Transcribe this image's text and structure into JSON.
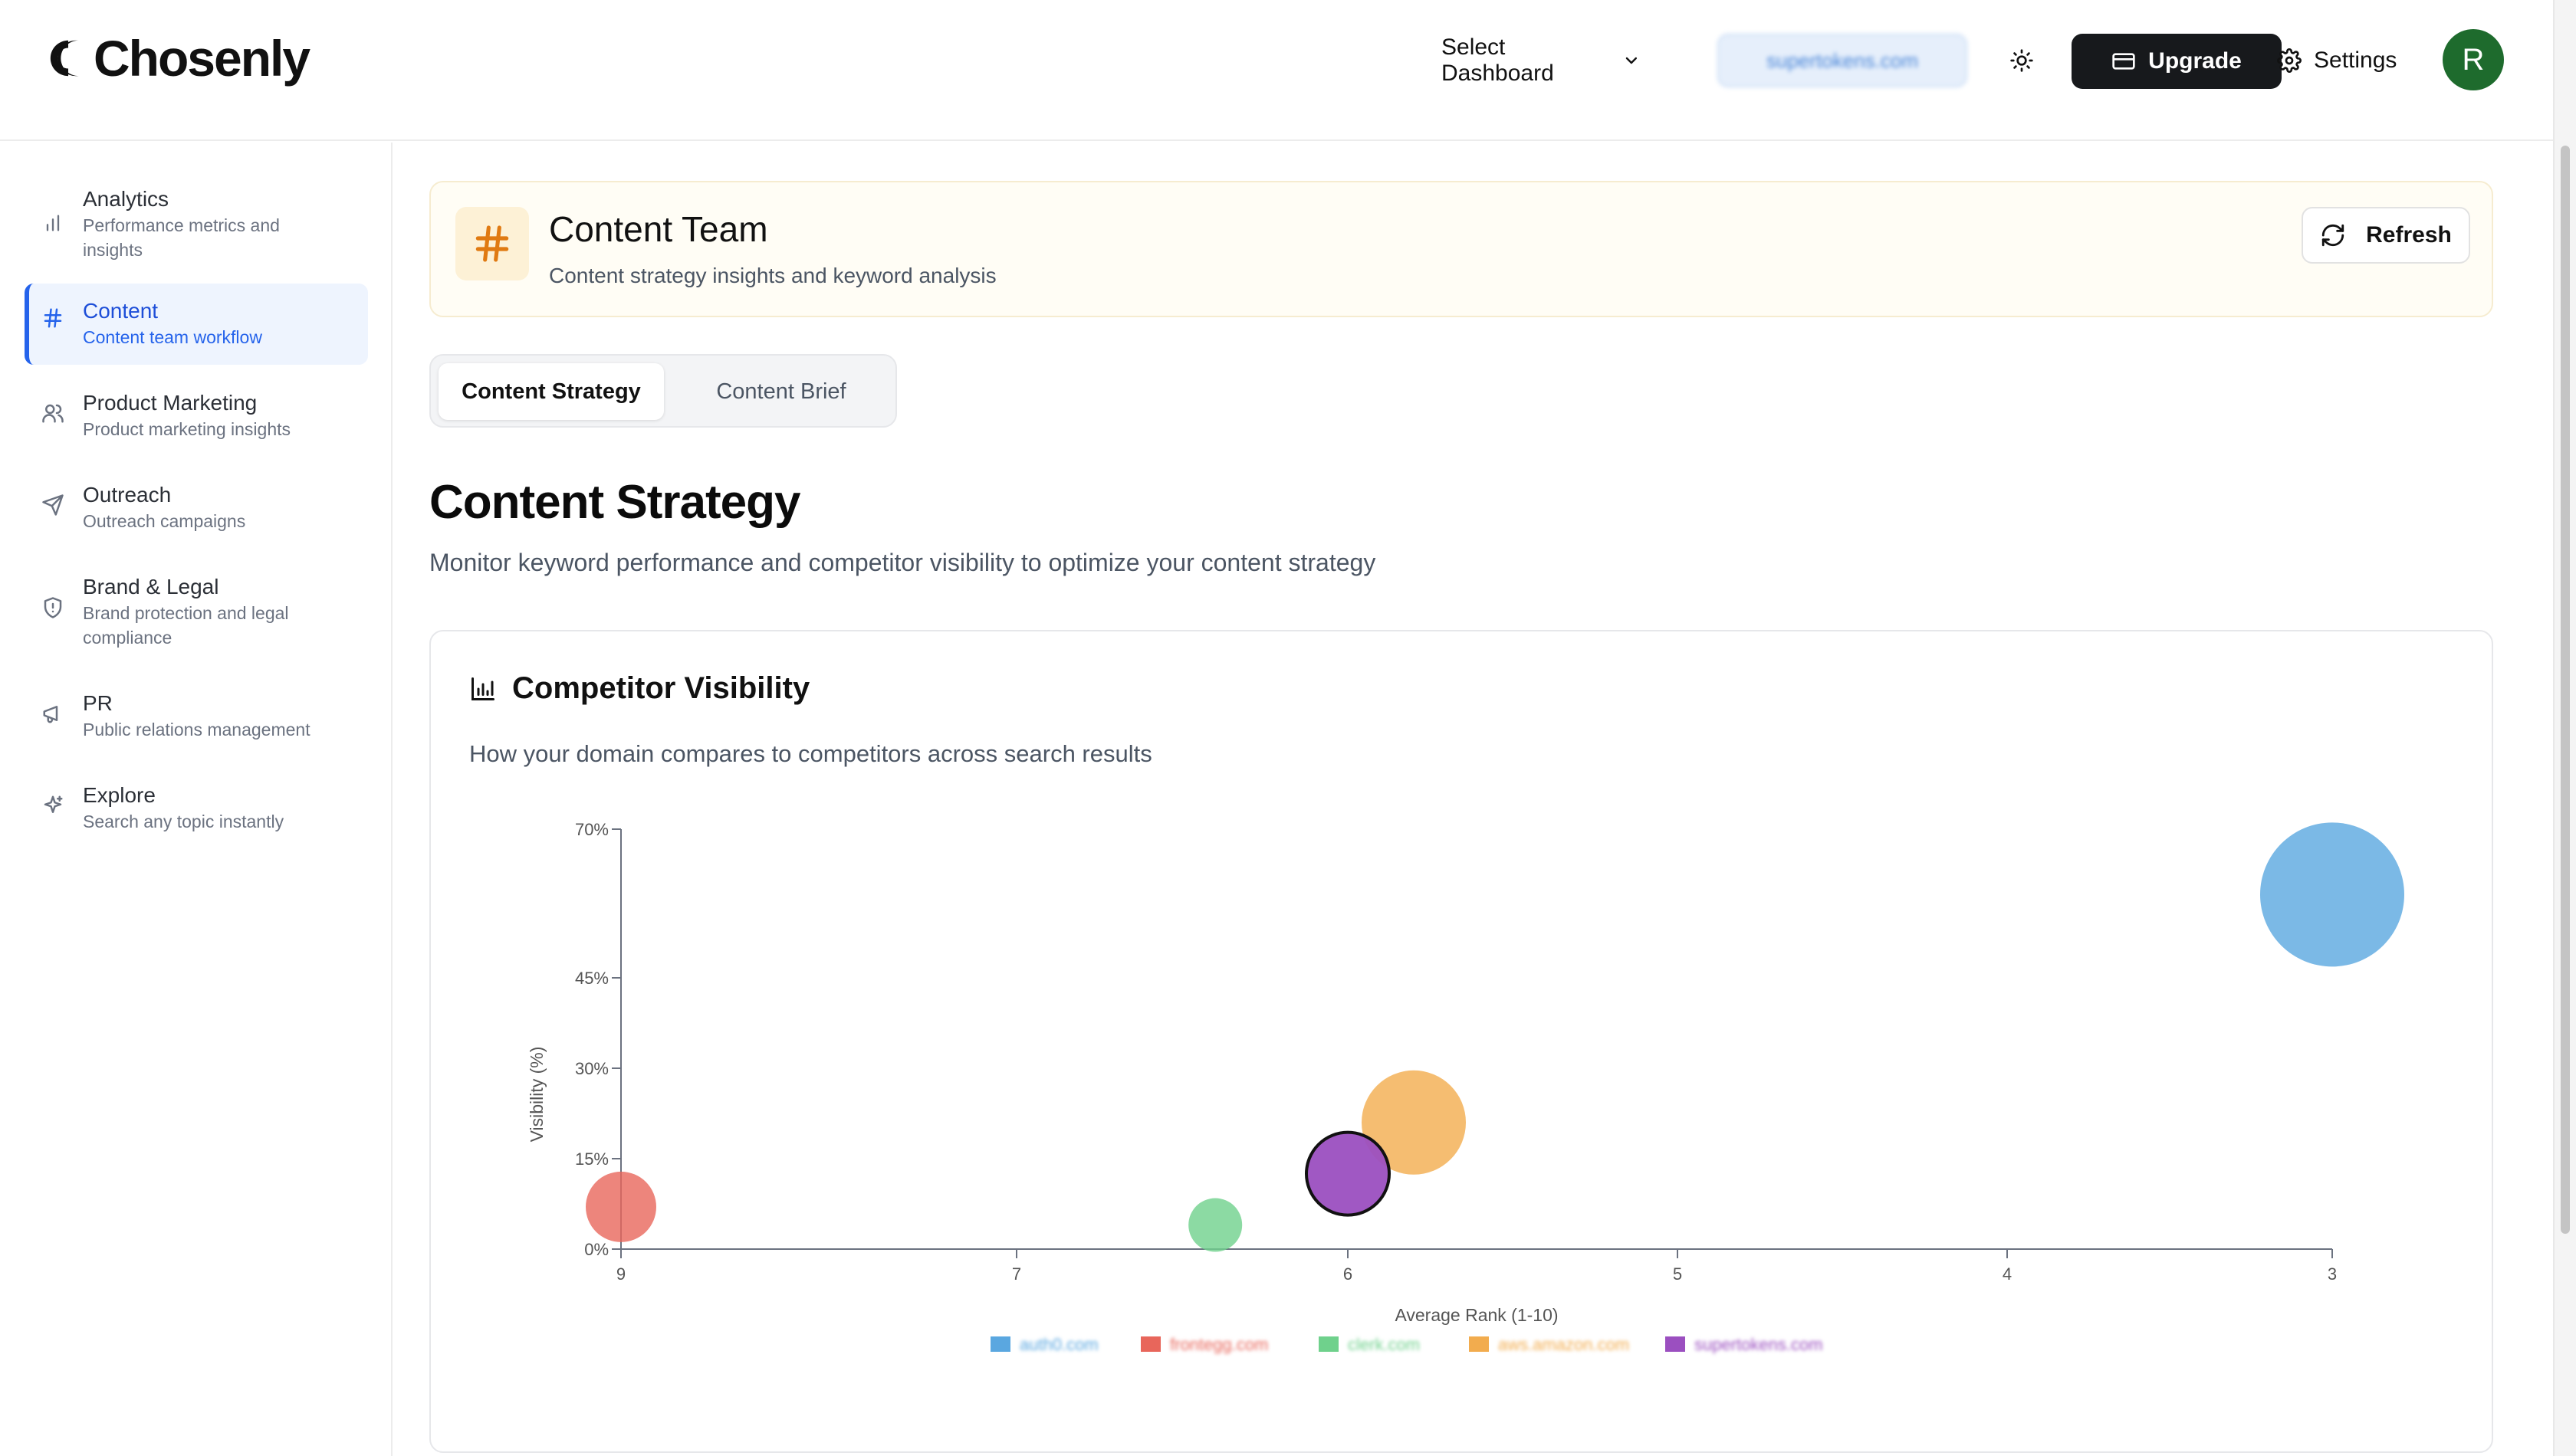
{
  "header": {
    "logo_text": "Chosenly",
    "select_dashboard": "Select Dashboard",
    "domain_selected": "supertokens.com",
    "upgrade_label": "Upgrade",
    "settings_label": "Settings",
    "avatar_initial": "R"
  },
  "sidebar": {
    "items": [
      {
        "title": "Analytics",
        "subtitle": "Performance metrics and insights",
        "icon": "bar-chart-icon"
      },
      {
        "title": "Content",
        "subtitle": "Content team workflow",
        "icon": "hash-icon",
        "active": true
      },
      {
        "title": "Product Marketing",
        "subtitle": "Product marketing insights",
        "icon": "users-icon"
      },
      {
        "title": "Outreach",
        "subtitle": "Outreach campaigns",
        "icon": "send-icon"
      },
      {
        "title": "Brand & Legal",
        "subtitle": "Brand protection and legal compliance",
        "icon": "shield-icon"
      },
      {
        "title": "PR",
        "subtitle": "Public relations management",
        "icon": "megaphone-icon"
      },
      {
        "title": "Explore",
        "subtitle": "Search any topic instantly",
        "icon": "sparkles-icon"
      }
    ]
  },
  "banner": {
    "title": "Content Team",
    "subtitle": "Content strategy insights and keyword analysis",
    "refresh_label": "Refresh"
  },
  "tabs": [
    {
      "label": "Content Strategy",
      "active": true
    },
    {
      "label": "Content Brief",
      "active": false
    }
  ],
  "main": {
    "title": "Content Strategy",
    "subtitle": "Monitor keyword performance and competitor visibility to optimize your content strategy"
  },
  "card": {
    "title": "Competitor Visibility",
    "subtitle": "How your domain compares to competitors across search results"
  },
  "chart_data": {
    "type": "scatter",
    "xlabel": "Average Rank (1-10)",
    "ylabel": "Visibility (%)",
    "x_ticks": [
      "9",
      "7",
      "6",
      "5",
      "4",
      "3"
    ],
    "y_ticks": [
      "0%",
      "15%",
      "30%",
      "45%",
      "70%"
    ],
    "xlim": [
      9,
      3
    ],
    "ylim": [
      0,
      70
    ],
    "legend_position": "bottom",
    "series": [
      {
        "name": "auth0.com",
        "x": 3.0,
        "y": 59,
        "size": 94,
        "color": "#5aa7e0"
      },
      {
        "name": "frontegg.com",
        "x": 9.0,
        "y": 7,
        "size": 46,
        "color": "#e8665b"
      },
      {
        "name": "clerk.com",
        "x": 6.4,
        "y": 4,
        "size": 35,
        "color": "#6fd18c"
      },
      {
        "name": "aws.amazon.com",
        "x": 5.8,
        "y": 21,
        "size": 68,
        "color": "#f2ac4e"
      },
      {
        "name": "supertokens.com",
        "x": 6.0,
        "y": 12.5,
        "size": 54,
        "color": "#9b4fc0"
      }
    ]
  }
}
